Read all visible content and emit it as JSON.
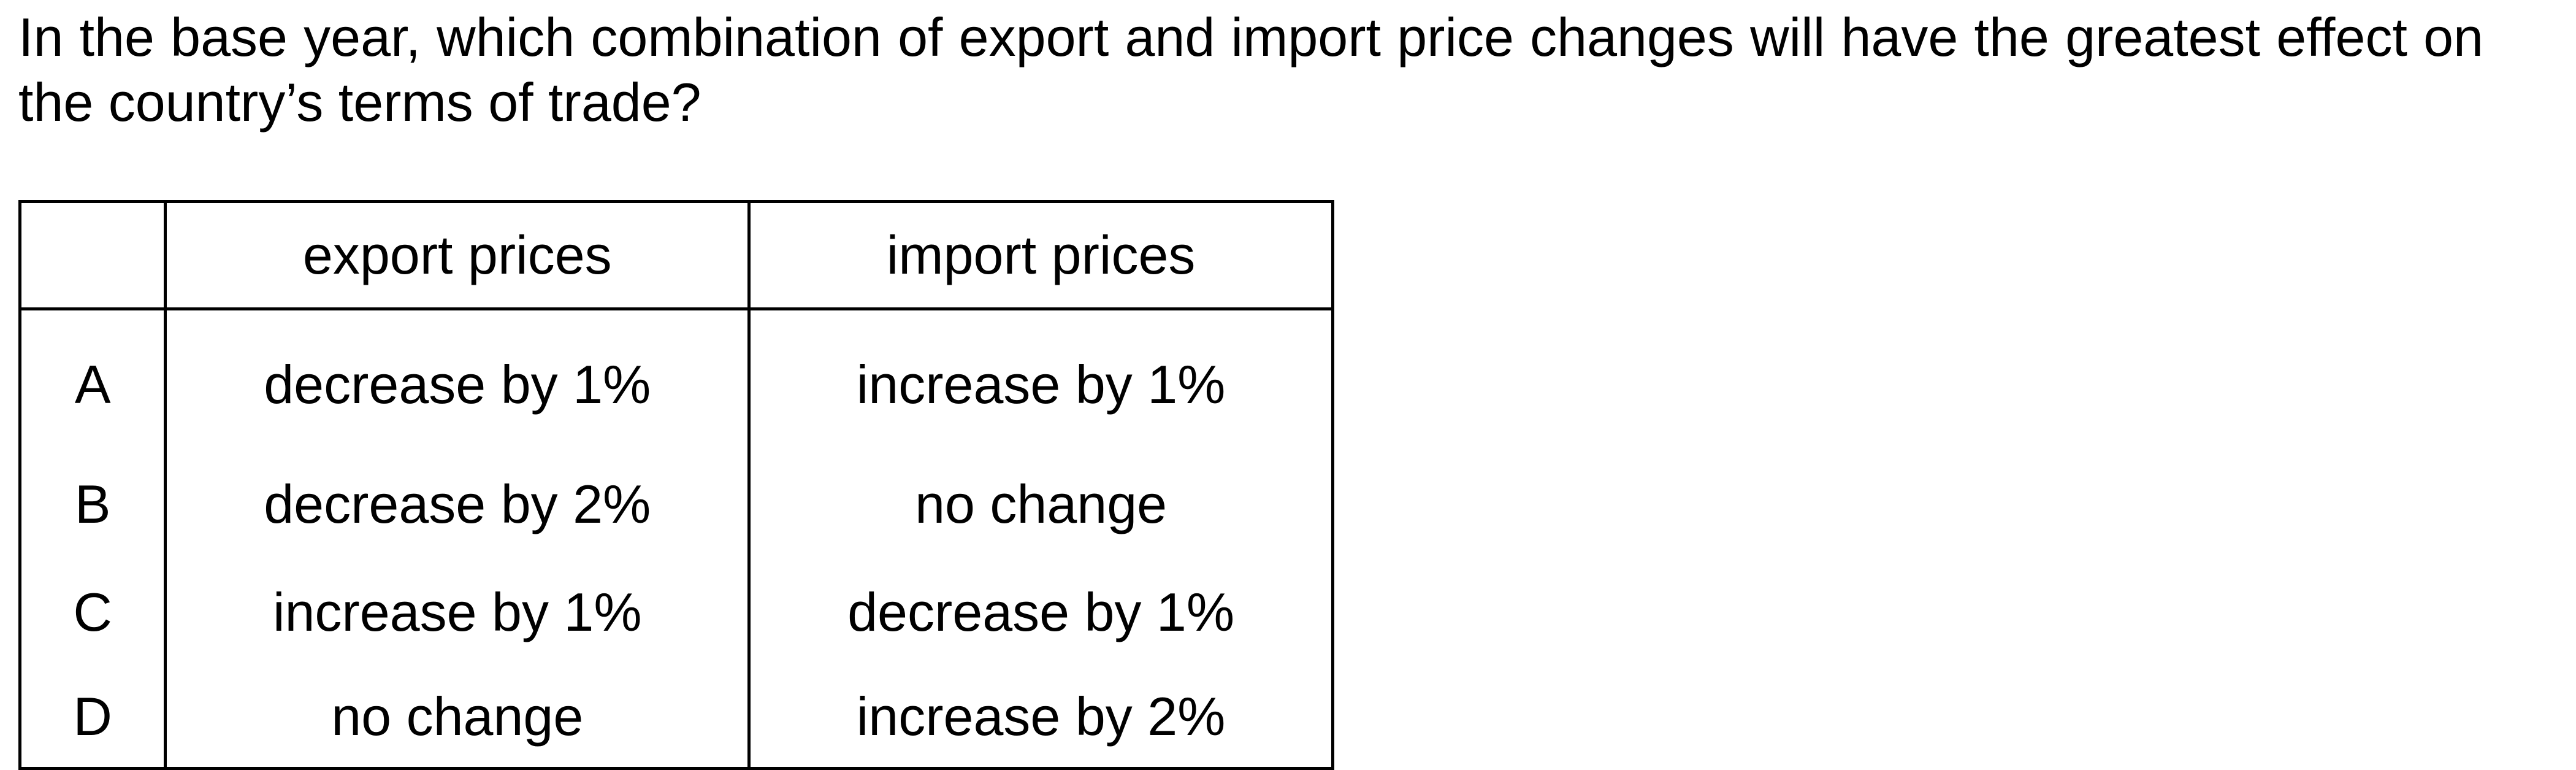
{
  "question": "In the base year, which combination of export and import price changes will have the greatest effect on the country’s terms of trade?",
  "table": {
    "headers": [
      "",
      "export prices",
      "import prices"
    ],
    "rows": [
      {
        "letter": "A",
        "export": "decrease by 1%",
        "import": "increase by 1%"
      },
      {
        "letter": "B",
        "export": "decrease by 2%",
        "import": "no change"
      },
      {
        "letter": "C",
        "export": "increase by 1%",
        "import": "decrease by 1%"
      },
      {
        "letter": "D",
        "export": "no change",
        "import": "increase by 2%"
      }
    ]
  }
}
